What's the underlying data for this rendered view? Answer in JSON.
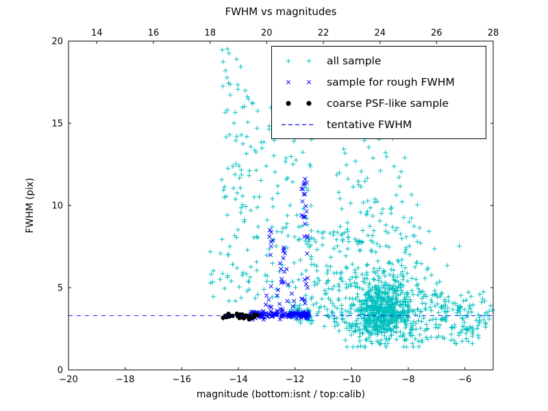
{
  "figure": {
    "title": "FWHM vs magnitudes",
    "xlabel": "magnitude (bottom:isnt / top:calib)",
    "ylabel": "FWHM (pix)"
  },
  "chart_data": {
    "type": "scatter",
    "title": "FWHM vs magnitudes",
    "xlabel": "magnitude (bottom:isnt / top:calib)",
    "ylabel": "FWHM (pix)",
    "xlim": [
      -20,
      -5
    ],
    "ylim": [
      0,
      20
    ],
    "x_ticks_bottom": [
      -20,
      -18,
      -16,
      -14,
      -12,
      -10,
      -8,
      -6
    ],
    "x_ticks_top": [
      14,
      16,
      18,
      20,
      22,
      24,
      26,
      28
    ],
    "top_axis_offset": 33,
    "y_ticks": [
      0,
      5,
      10,
      15,
      20
    ],
    "grid": false,
    "legend_position": "upper right",
    "tentative_fwhm": 3.3,
    "seed": 42,
    "colors": {
      "all_sample": "#00bfbf",
      "rough_fwhm_sample": "#0000ff",
      "psf_like_sample": "#000000",
      "tentative_line": "#0000ff"
    },
    "series": [
      {
        "name": "all sample",
        "marker": "plus",
        "color": "#00bfbf",
        "clusters": [
          {
            "type": "gauss",
            "n": 520,
            "cx": -8.95,
            "cy": 3.5,
            "sx": 0.5,
            "sy": 0.75,
            "clipY": [
              1.6,
              7.5
            ]
          },
          {
            "type": "gauss",
            "n": 260,
            "cx": -8.7,
            "cy": 4.6,
            "sx": 0.95,
            "sy": 1.9,
            "clipY": [
              1.4,
              10.5
            ],
            "clipX": [
              -11.5,
              -5.2
            ]
          },
          {
            "type": "band",
            "n": 130,
            "x": [
              -7.6,
              -5.0
            ],
            "cy": 3.3,
            "sy": 0.8,
            "clipY": [
              1.6,
              6.2
            ]
          },
          {
            "type": "uniform",
            "n": 90,
            "x": [
              -11.6,
              -9.6
            ],
            "y": [
              2.2,
              8.5
            ]
          },
          {
            "type": "uniform",
            "n": 80,
            "x": [
              -10.6,
              -7.6
            ],
            "y": [
              7.0,
              13.5
            ]
          },
          {
            "type": "uniform",
            "n": 18,
            "x": [
              -10.2,
              -8.2
            ],
            "y": [
              13.5,
              16.0
            ]
          },
          {
            "type": "uniform",
            "n": 85,
            "x": [
              -14.6,
              -13.6
            ],
            "y": [
              4.0,
              19.7
            ]
          },
          {
            "type": "uniform",
            "n": 55,
            "x": [
              -13.6,
              -12.6
            ],
            "y": [
              4.2,
              16.5
            ]
          },
          {
            "type": "uniform",
            "n": 55,
            "x": [
              -12.6,
              -11.4
            ],
            "y": [
              4.0,
              14.5
            ]
          },
          {
            "type": "band",
            "n": 45,
            "x": [
              -12.2,
              -11.4
            ],
            "cy": 3.4,
            "sy": 0.35
          },
          {
            "type": "uniform",
            "n": 40,
            "x": [
              -10.5,
              -5.5
            ],
            "y": [
              1.6,
              2.6
            ]
          },
          {
            "type": "uniform",
            "n": 10,
            "x": [
              -15.0,
              -14.5
            ],
            "y": [
              3.0,
              8.0
            ]
          },
          {
            "type": "band",
            "n": 25,
            "x": [
              -11.4,
              -10.3
            ],
            "cy": 3.4,
            "sy": 0.5
          }
        ]
      },
      {
        "name": "sample for rough FWHM",
        "marker": "x",
        "color": "#0000ff",
        "clusters": [
          {
            "type": "band",
            "n": 140,
            "x": [
              -13.6,
              -11.5
            ],
            "cy": 3.35,
            "sy": 0.12
          },
          {
            "type": "uniform",
            "n": 12,
            "x": [
              -13.1,
              -11.6
            ],
            "y": [
              3.7,
              4.6
            ]
          },
          {
            "type": "uniform",
            "n": 16,
            "x": [
              -11.78,
              -11.55
            ],
            "y": [
              8.8,
              11.8
            ]
          },
          {
            "type": "uniform",
            "n": 9,
            "x": [
              -11.78,
              -11.55
            ],
            "y": [
              4.2,
              8.5
            ]
          },
          {
            "type": "uniform",
            "n": 11,
            "x": [
              -12.55,
              -12.35
            ],
            "y": [
              5.2,
              7.6
            ]
          },
          {
            "type": "uniform",
            "n": 7,
            "x": [
              -12.95,
              -12.78
            ],
            "y": [
              6.8,
              8.7
            ]
          },
          {
            "type": "uniform",
            "n": 8,
            "x": [
              -13.35,
              -12.1
            ],
            "y": [
              4.5,
              6.5
            ]
          }
        ]
      },
      {
        "name": "coarse PSF-like sample",
        "marker": "circle",
        "color": "#000000",
        "clusters": [
          {
            "type": "band",
            "n": 32,
            "x": [
              -14.55,
              -13.3
            ],
            "cy": 3.28,
            "sy": 0.07
          }
        ]
      },
      {
        "name": "tentative FWHM",
        "marker": "dashed-line",
        "color": "#0000ff",
        "y": 3.3
      }
    ]
  }
}
